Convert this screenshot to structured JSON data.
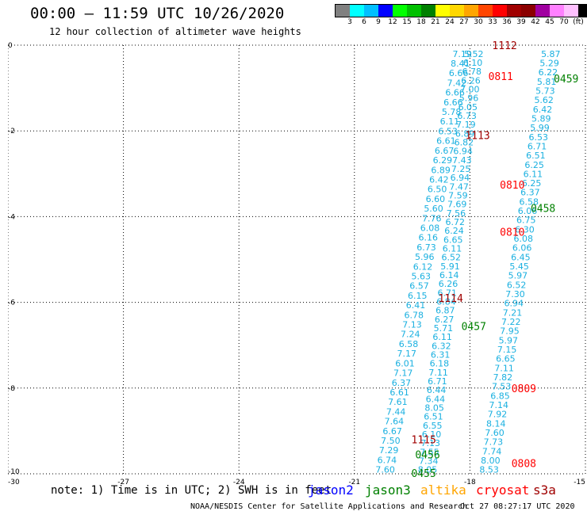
{
  "header": {
    "title": "00:00 – 11:59 UTC 10/26/2020",
    "subtitle": "12 hour collection of altimeter wave heights"
  },
  "colorbar": {
    "colors": [
      "#808080",
      "#00ffff",
      "#00bfff",
      "#0000ff",
      "#00ff00",
      "#00c000",
      "#008000",
      "#ffff00",
      "#ffd700",
      "#ffa500",
      "#ff4500",
      "#ff0000",
      "#a00000",
      "#8b0000",
      "#a000a0",
      "#ff80ff",
      "#ffc0ff",
      "#000000"
    ],
    "labels": [
      "3",
      "6",
      "9",
      "12",
      "15",
      "18",
      "21",
      "24",
      "27",
      "30",
      "33",
      "36",
      "39",
      "42",
      "45",
      "70",
      "(ft)"
    ]
  },
  "chart_data": {
    "type": "scatter",
    "xlim": [
      -30,
      -15
    ],
    "ylim": [
      -10,
      0
    ],
    "x_ticks": [
      "-30",
      "-27",
      "-24",
      "-21",
      "-18",
      "-15"
    ],
    "y_ticks": [
      "0",
      "-2",
      "-4",
      "-6",
      "-8",
      "-10"
    ],
    "grid": true,
    "swh_color": "#1ab0e0",
    "track_a": {
      "x": [
        -18.2,
        -20.2
      ],
      "y": [
        -0.2,
        -9.9
      ],
      "swh": [
        "7.19",
        "8.41",
        "6.66",
        "7.42",
        "6.66",
        "6.66",
        "5.78",
        "6.11",
        "6.53",
        "6.61",
        "6.67",
        "6.29",
        "6.89",
        "6.42",
        "6.50",
        "6.60",
        "5.60",
        "7.76",
        "6.08",
        "6.16",
        "6.73",
        "5.96",
        "6.12",
        "5.63",
        "6.57",
        "6.15",
        "6.41",
        "6.78",
        "7.13",
        "7.24",
        "6.58",
        "7.17",
        "6.01",
        "7.17",
        "6.37",
        "6.61",
        "7.61",
        "7.44",
        "7.64",
        "6.67",
        "7.50",
        "7.29",
        "6.74",
        "7.60"
      ]
    },
    "track_b": {
      "x": [
        -17.9,
        -19.1
      ],
      "y": [
        -0.2,
        -9.9
      ],
      "swh": [
        "5.52",
        "6.10",
        "6.78",
        "6.26",
        "7.00",
        "5.96",
        "6.05",
        "6.73",
        "7.19",
        "6.89",
        "6.82",
        "6.94",
        "7.43",
        "7.25",
        "6.94",
        "7.47",
        "7.59",
        "7.69",
        "7.56",
        "6.72",
        "6.24",
        "6.65",
        "6.11",
        "6.52",
        "5.91",
        "6.14",
        "6.26",
        "6.71",
        "6.84",
        "6.87",
        "6.27",
        "5.71",
        "6.11",
        "6.32",
        "6.31",
        "6.18",
        "7.11",
        "6.71",
        "6.44",
        "6.44",
        "8.05",
        "6.51",
        "6.55",
        "6.10",
        "7.13",
        "7.55",
        "7.34",
        "8.05"
      ]
    },
    "track_c": {
      "x": [
        -15.9,
        -17.5
      ],
      "y": [
        -0.2,
        -9.9
      ],
      "swh": [
        "5.87",
        "5.29",
        "6.22",
        "5.81",
        "5.73",
        "5.62",
        "6.42",
        "5.89",
        "5.99",
        "6.53",
        "6.71",
        "6.51",
        "6.25",
        "6.11",
        "6.25",
        "6.37",
        "6.58",
        "6.06",
        "6.75",
        "6.30",
        "6.08",
        "6.06",
        "6.45",
        "5.45",
        "5.97",
        "6.52",
        "7.30",
        "6.94",
        "7.21",
        "7.22",
        "7.95",
        "5.97",
        "7.15",
        "6.65",
        "7.11",
        "7.82",
        "7.53",
        "6.85",
        "7.14",
        "7.92",
        "8.14",
        "7.60",
        "7.73",
        "7.74",
        "8.00",
        "8.53"
      ]
    },
    "time_labels": [
      {
        "text": "1112",
        "x": -17.1,
        "y": 0.0,
        "color": "#a00000"
      },
      {
        "text": "0811",
        "x": -17.2,
        "y": -0.72,
        "color": "#ff0000"
      },
      {
        "text": "0459",
        "x": -15.5,
        "y": -0.78,
        "color": "#008000"
      },
      {
        "text": "1113",
        "x": -17.8,
        "y": -2.1,
        "color": "#a00000"
      },
      {
        "text": "0810",
        "x": -16.9,
        "y": -3.25,
        "color": "#ff0000"
      },
      {
        "text": "0458",
        "x": -16.1,
        "y": -3.8,
        "color": "#008000"
      },
      {
        "text": "0810",
        "x": -16.9,
        "y": -4.35,
        "color": "#ff0000"
      },
      {
        "text": "1114",
        "x": -18.5,
        "y": -5.9,
        "color": "#a00000"
      },
      {
        "text": "0457",
        "x": -17.9,
        "y": -6.55,
        "color": "#008000"
      },
      {
        "text": "0809",
        "x": -16.6,
        "y": -8.0,
        "color": "#ff0000"
      },
      {
        "text": "1115",
        "x": -19.2,
        "y": -9.2,
        "color": "#a00000"
      },
      {
        "text": "0808",
        "x": -16.6,
        "y": -9.75,
        "color": "#ff0000"
      },
      {
        "text": "0456",
        "x": -19.1,
        "y": -9.55,
        "color": "#008000"
      },
      {
        "text": "0455",
        "x": -19.2,
        "y": -9.98,
        "color": "#008000"
      }
    ]
  },
  "note": "note: 1) Time is in UTC; 2) SWH is in feet",
  "satellites": [
    {
      "name": "jason2",
      "color": "#0000ff"
    },
    {
      "name": "jason3",
      "color": "#008000"
    },
    {
      "name": "altika",
      "color": "#ffa500"
    },
    {
      "name": "cryosat",
      "color": "#ff0000"
    },
    {
      "name": "s3a",
      "color": "#a00000"
    }
  ],
  "footer": {
    "credit": "NOAA/NESDIS Center for Satellite Applications and Research",
    "timestamp": "Oct 27 08:27:17 UTC 2020"
  }
}
